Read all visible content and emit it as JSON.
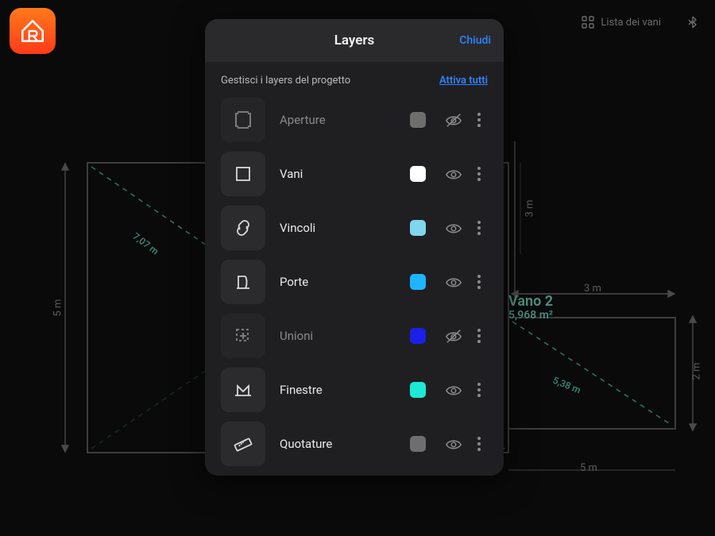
{
  "app": {
    "name": "RoomSketcher"
  },
  "toolbar": {
    "rooms_list_label": "Lista dei vani"
  },
  "panel": {
    "title": "Layers",
    "close_label": "Chiudi",
    "subtitle": "Gestisci i layers del progetto",
    "activate_all_label": "Attiva tutti"
  },
  "layers": [
    {
      "id": "aperture",
      "label": "Aperture",
      "active": false,
      "icon": "crop",
      "color": "#6e6e6e",
      "visibility": "hidden"
    },
    {
      "id": "vani",
      "label": "Vani",
      "active": true,
      "icon": "square",
      "color": "#ffffff",
      "visibility": "visible"
    },
    {
      "id": "vincoli",
      "label": "Vincoli",
      "active": true,
      "icon": "link",
      "color": "#7fd6ee",
      "visibility": "visible"
    },
    {
      "id": "porte",
      "label": "Porte",
      "active": true,
      "icon": "door",
      "color": "#1fb4ff",
      "visibility": "visible"
    },
    {
      "id": "unioni",
      "label": "Unioni",
      "active": false,
      "icon": "union",
      "color": "#1a20e6",
      "visibility": "hidden"
    },
    {
      "id": "finestre",
      "label": "Finestre",
      "active": true,
      "icon": "window",
      "color": "#1de9d4",
      "visibility": "visible"
    },
    {
      "id": "quotature",
      "label": "Quotature",
      "active": true,
      "icon": "ruler",
      "color": "#6e6e6e",
      "visibility": "visible"
    }
  ],
  "canvas": {
    "background_color": "#0a0a0a",
    "stroke_color": "#3d3d3d",
    "dash_color": "#2e6f63",
    "room2": {
      "name": "Vano 2",
      "area": "5,968 m²"
    },
    "dims": {
      "left_v": "5 m",
      "diag1": "7,07 m",
      "right_v1": "3 m",
      "top_right": "3 m",
      "right_v2": "2 m",
      "diag2": "5,38 m",
      "bottom_right": "5 m"
    }
  },
  "colors": {
    "panel_bg": "#1f1f21",
    "panel_header_bg": "#2a2a2c",
    "accent_blue": "#2e82ff",
    "text_primary": "#e8e8e8",
    "text_muted": "#8a8a8a",
    "icon_stroke": "#d9d9d9"
  }
}
